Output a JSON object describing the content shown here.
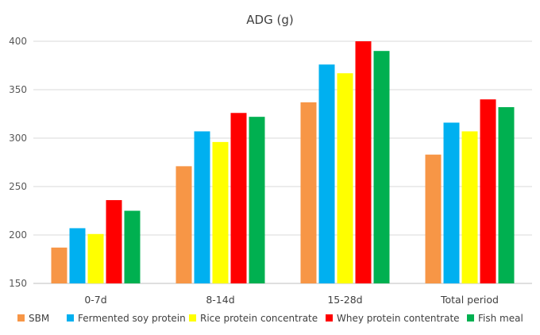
{
  "chart_data": {
    "type": "bar",
    "title": "ADG (g)",
    "categories": [
      "0-7d",
      "8-14d",
      "15-28d",
      "Total period"
    ],
    "series": [
      {
        "name": "SBM",
        "color": "#f79646",
        "values": [
          187,
          271,
          337,
          283
        ]
      },
      {
        "name": "Fermented soy protein",
        "color": "#00b0f0",
        "values": [
          207,
          307,
          376,
          316
        ]
      },
      {
        "name": "Rice protein concentrate",
        "color": "#ffff00",
        "values": [
          201,
          296,
          367,
          307
        ]
      },
      {
        "name": "Whey protein contentrate",
        "color": "#ff0000",
        "values": [
          236,
          326,
          400,
          340
        ]
      },
      {
        "name": "Fish meal",
        "color": "#00b050",
        "values": [
          225,
          322,
          390,
          332
        ]
      }
    ],
    "ylim": [
      150,
      400
    ],
    "yticks": [
      150,
      200,
      250,
      300,
      350,
      400
    ],
    "grid": true,
    "legend_position": "bottom"
  }
}
